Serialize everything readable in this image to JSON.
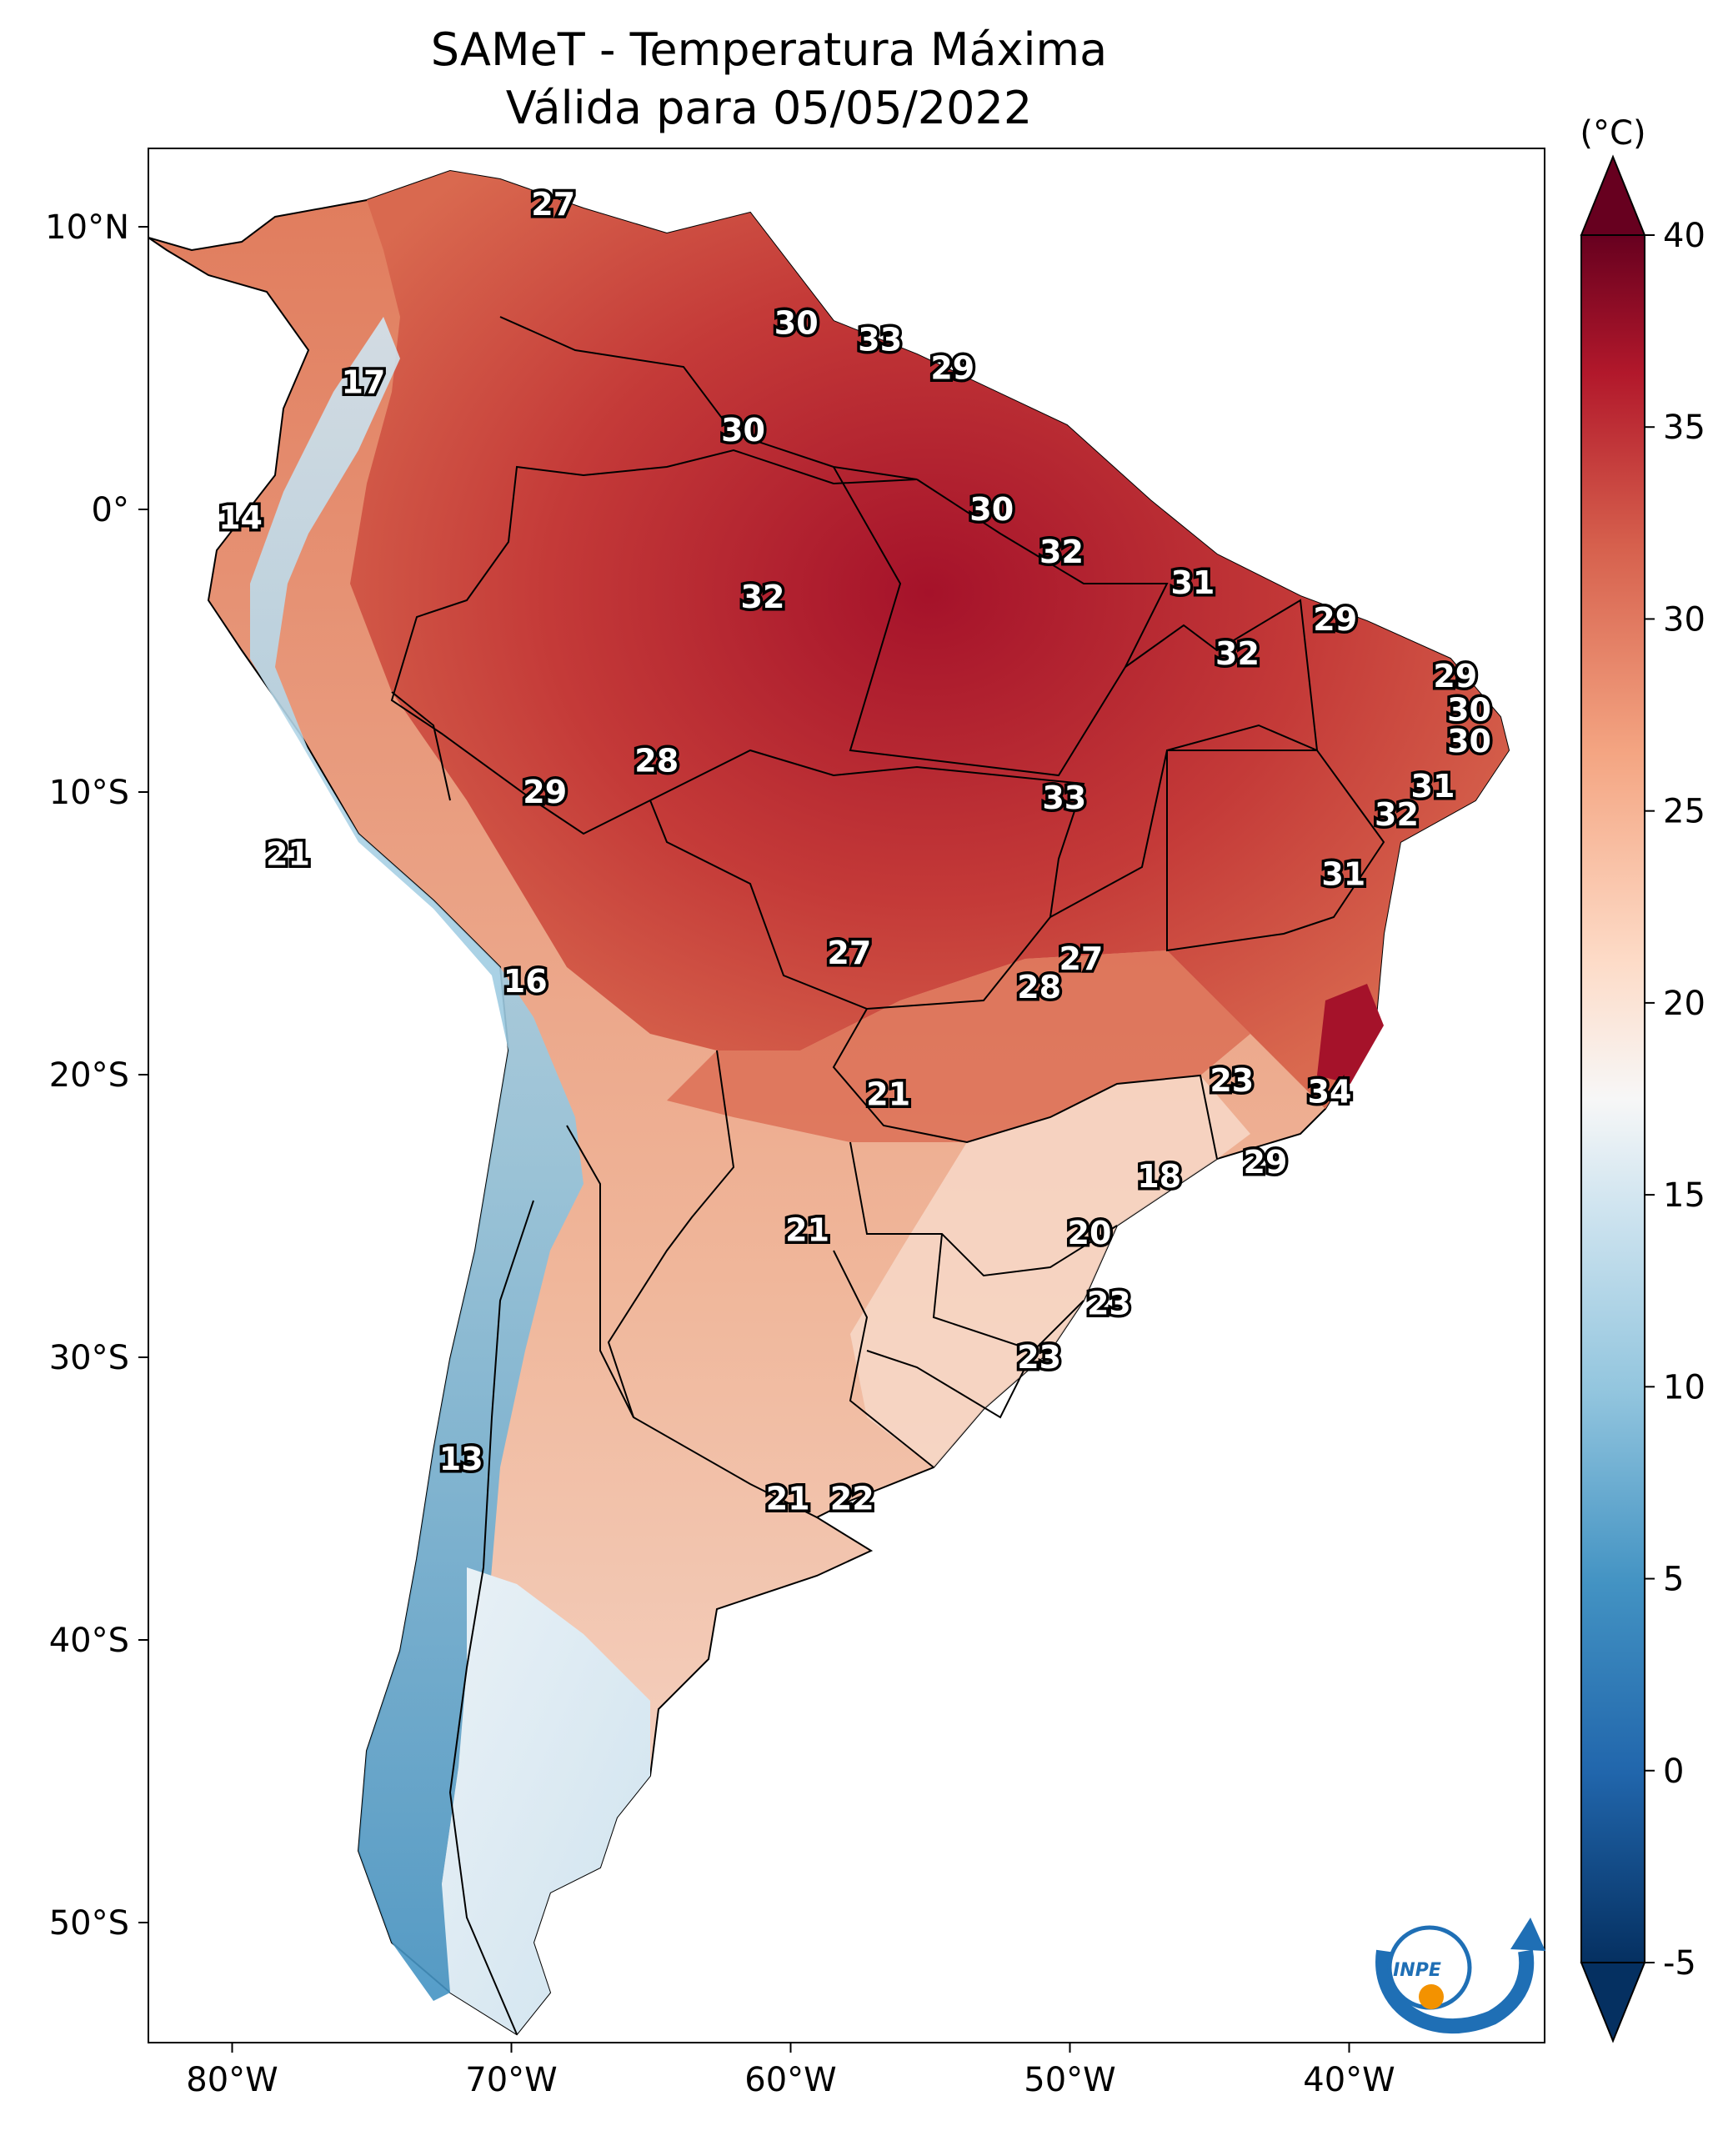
{
  "title": "SAMeT - Temperatura Máxima",
  "subtitle": "Válida para 05/05/2022",
  "colorbar": {
    "unit": "(°C)",
    "ticks": [
      "-5",
      "0",
      "5",
      "10",
      "15",
      "20",
      "25",
      "30",
      "35",
      "40"
    ],
    "range": [
      -5,
      40
    ],
    "colors": [
      "#053061",
      "#2166ac",
      "#4393c3",
      "#92c5de",
      "#d1e5f0",
      "#f7f7f7",
      "#fddbc7",
      "#f4a582",
      "#d6604d",
      "#b2182b",
      "#67001f"
    ]
  },
  "axes": {
    "lon_ticks": [
      "80°W",
      "70°W",
      "60°W",
      "50°W",
      "40°W"
    ],
    "lat_ticks": [
      "10°N",
      "0°",
      "10°S",
      "20°S",
      "30°S",
      "40°S",
      "50°S"
    ]
  },
  "logo": {
    "text": "INPE",
    "blue": "#1f6fb5",
    "orange": "#f39200"
  },
  "labels": [
    {
      "value": "27",
      "lon": -68.5,
      "lat": 10.8
    },
    {
      "value": "30",
      "lon": -59.8,
      "lat": 6.6
    },
    {
      "value": "33",
      "lon": -56.8,
      "lat": 6.0
    },
    {
      "value": "29",
      "lon": -54.2,
      "lat": 5.0
    },
    {
      "value": "17",
      "lon": -75.3,
      "lat": 4.5
    },
    {
      "value": "30",
      "lon": -61.7,
      "lat": 2.8
    },
    {
      "value": "14",
      "lon": -79.7,
      "lat": -0.3
    },
    {
      "value": "30",
      "lon": -52.8,
      "lat": 0.0
    },
    {
      "value": "32",
      "lon": -50.3,
      "lat": -1.5
    },
    {
      "value": "32",
      "lon": -61.0,
      "lat": -3.1
    },
    {
      "value": "31",
      "lon": -45.6,
      "lat": -2.6
    },
    {
      "value": "29",
      "lon": -40.5,
      "lat": -3.9
    },
    {
      "value": "32",
      "lon": -44.0,
      "lat": -5.1
    },
    {
      "value": "29",
      "lon": -36.2,
      "lat": -5.9
    },
    {
      "value": "30",
      "lon": -35.7,
      "lat": -7.1
    },
    {
      "value": "30",
      "lon": -35.7,
      "lat": -8.2
    },
    {
      "value": "28",
      "lon": -64.8,
      "lat": -8.9
    },
    {
      "value": "29",
      "lon": -68.8,
      "lat": -10.0
    },
    {
      "value": "33",
      "lon": -50.2,
      "lat": -10.2
    },
    {
      "value": "31",
      "lon": -37.0,
      "lat": -9.8
    },
    {
      "value": "32",
      "lon": -38.3,
      "lat": -10.8
    },
    {
      "value": "21",
      "lon": -78.0,
      "lat": -12.2
    },
    {
      "value": "31",
      "lon": -40.2,
      "lat": -12.9
    },
    {
      "value": "27",
      "lon": -57.9,
      "lat": -15.7
    },
    {
      "value": "27",
      "lon": -49.6,
      "lat": -15.9
    },
    {
      "value": "28",
      "lon": -51.1,
      "lat": -16.9
    },
    {
      "value": "16",
      "lon": -69.5,
      "lat": -16.7
    },
    {
      "value": "21",
      "lon": -56.5,
      "lat": -20.7
    },
    {
      "value": "23",
      "lon": -44.2,
      "lat": -20.2
    },
    {
      "value": "34",
      "lon": -40.7,
      "lat": -20.6
    },
    {
      "value": "29",
      "lon": -43.0,
      "lat": -23.1
    },
    {
      "value": "18",
      "lon": -46.8,
      "lat": -23.6
    },
    {
      "value": "21",
      "lon": -59.4,
      "lat": -25.5
    },
    {
      "value": "20",
      "lon": -49.3,
      "lat": -25.6
    },
    {
      "value": "23",
      "lon": -48.6,
      "lat": -28.1
    },
    {
      "value": "23",
      "lon": -51.1,
      "lat": -30.0
    },
    {
      "value": "13",
      "lon": -71.8,
      "lat": -33.6
    },
    {
      "value": "21",
      "lon": -60.1,
      "lat": -35.0
    },
    {
      "value": "22",
      "lon": -57.8,
      "lat": -35.0
    }
  ]
}
